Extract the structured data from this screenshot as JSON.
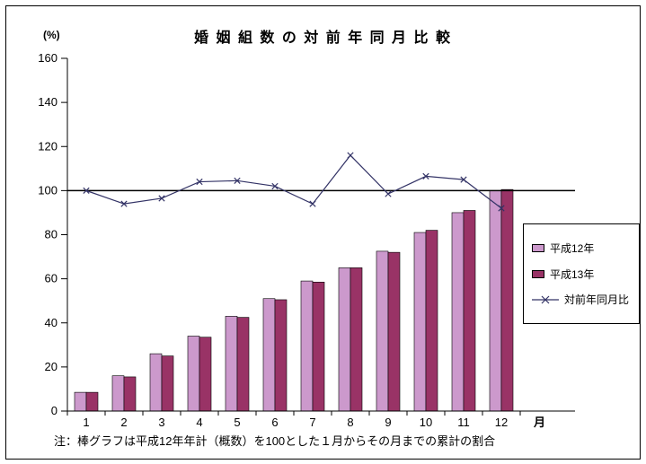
{
  "chart_data": {
    "type": "bar+line",
    "title": "婚 姻 組 数 の 対 前 年 同 月 比 較",
    "y_unit": "(%)",
    "x_unit": "月",
    "note": "注：棒グラフは平成12年年計（概数）を100とした１月からその月までの累計の割合",
    "categories": [
      "1",
      "2",
      "3",
      "4",
      "5",
      "6",
      "7",
      "8",
      "9",
      "10",
      "11",
      "12"
    ],
    "y_ticks": [
      0,
      20,
      40,
      60,
      80,
      100,
      120,
      140,
      160
    ],
    "ylim": [
      0,
      160
    ],
    "reference_line": 100,
    "grid": false,
    "legend_position": "right",
    "axis_color": "#000000",
    "series": [
      {
        "name": "平成12年",
        "type": "bar",
        "color": "#CC99CC",
        "values": [
          8.5,
          16,
          26,
          34,
          43,
          51,
          59,
          65,
          72.5,
          81,
          90,
          100
        ]
      },
      {
        "name": "平成13年",
        "type": "bar",
        "color": "#993366",
        "values": [
          8.5,
          15.5,
          25,
          33.5,
          42.5,
          50.5,
          58.5,
          65,
          72,
          82,
          91,
          100.5
        ]
      },
      {
        "name": "対前年同月比",
        "type": "line",
        "marker": "x",
        "color": "#333366",
        "values": [
          100,
          94,
          96.5,
          104,
          104.5,
          102,
          94,
          116,
          98.5,
          106.5,
          105,
          92
        ]
      }
    ]
  }
}
